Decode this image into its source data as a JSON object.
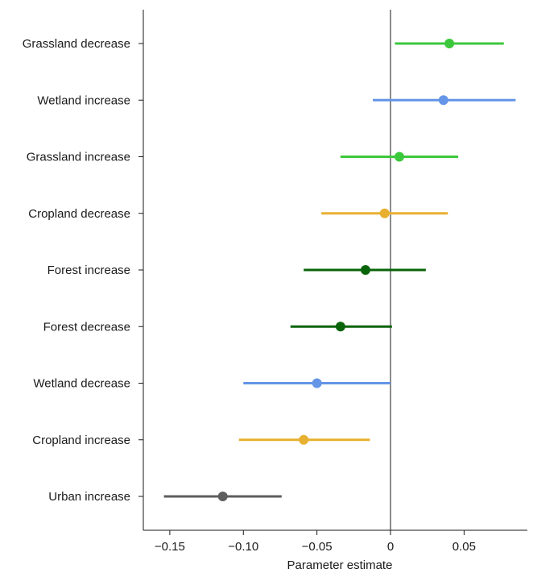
{
  "chart_data": {
    "type": "scatter",
    "subtype": "forest-plot",
    "title": "",
    "xlabel": "Parameter estimate",
    "ylabel": "",
    "xlim": [
      -0.168,
      0.093
    ],
    "xticks": [
      -0.15,
      -0.1,
      -0.05,
      0,
      0.05
    ],
    "xtick_labels": [
      "−0.15",
      "−0.10",
      "−0.05",
      "0",
      "0.05"
    ],
    "reference_line": 0,
    "grid": false,
    "legend": "none",
    "rows": [
      {
        "label": "Grassland decrease",
        "estimate": 0.04,
        "low": 0.003,
        "high": 0.077,
        "color": "#3cc83c"
      },
      {
        "label": "Wetland increase",
        "estimate": 0.036,
        "low": -0.012,
        "high": 0.085,
        "color": "#6495e6"
      },
      {
        "label": "Grassland increase",
        "estimate": 0.006,
        "low": -0.034,
        "high": 0.046,
        "color": "#3cc83c"
      },
      {
        "label": "Cropland decrease",
        "estimate": -0.004,
        "low": -0.047,
        "high": 0.039,
        "color": "#e8b030"
      },
      {
        "label": "Forest increase",
        "estimate": -0.017,
        "low": -0.059,
        "high": 0.024,
        "color": "#0a640a"
      },
      {
        "label": "Forest decrease",
        "estimate": -0.034,
        "low": -0.068,
        "high": 0.001,
        "color": "#0a640a"
      },
      {
        "label": "Wetland decrease",
        "estimate": -0.05,
        "low": -0.1,
        "high": 0.0,
        "color": "#6495e6"
      },
      {
        "label": "Cropland increase",
        "estimate": -0.059,
        "low": -0.103,
        "high": -0.014,
        "color": "#e8b030"
      },
      {
        "label": "Urban increase",
        "estimate": -0.114,
        "low": -0.154,
        "high": -0.074,
        "color": "#5e5e5e"
      }
    ]
  }
}
